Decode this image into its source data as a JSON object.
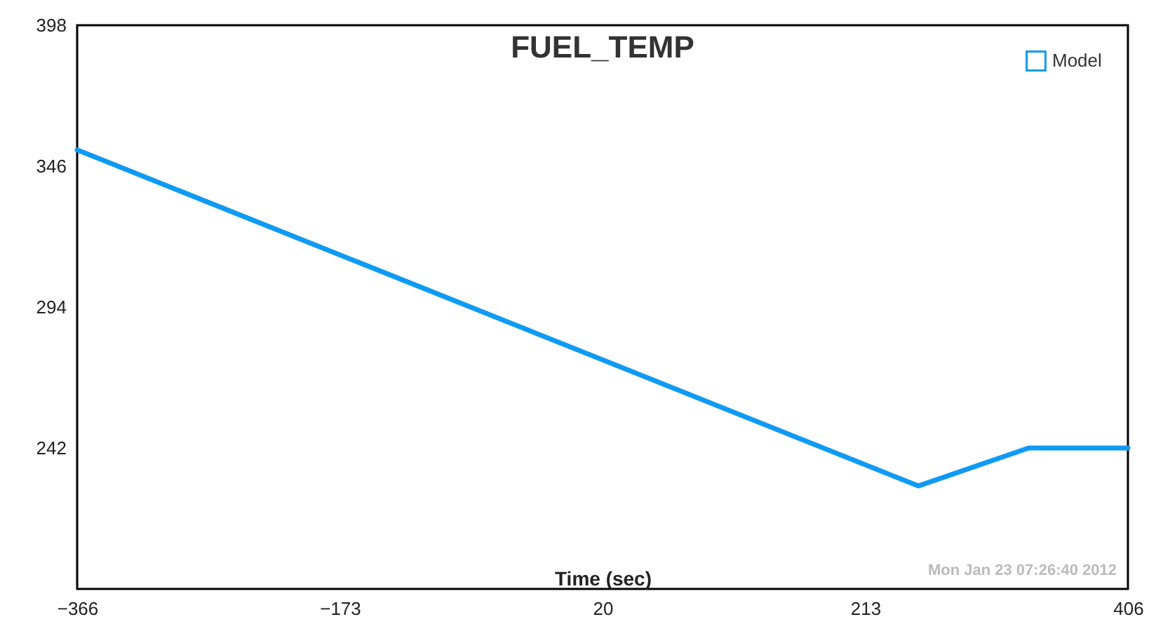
{
  "chart_data": {
    "type": "line",
    "title": "FUEL_TEMP",
    "xlabel": "Time (sec)",
    "x": [
      -366,
      252,
      333,
      406
    ],
    "series": [
      {
        "name": "Model",
        "color": "#0f9af5",
        "values": [
          352,
          228,
          242,
          242
        ]
      }
    ],
    "xlim": [
      -366,
      406
    ],
    "xticks": [
      -366,
      -173,
      20,
      213,
      406
    ],
    "ylim": [
      190,
      398
    ],
    "yticks": [
      242,
      294,
      346,
      398
    ],
    "grid": false,
    "legend": "top right",
    "marker": "none",
    "line_style": "solid",
    "annotations": [
      "Mon Jan 23 07:26:40 2012"
    ]
  }
}
